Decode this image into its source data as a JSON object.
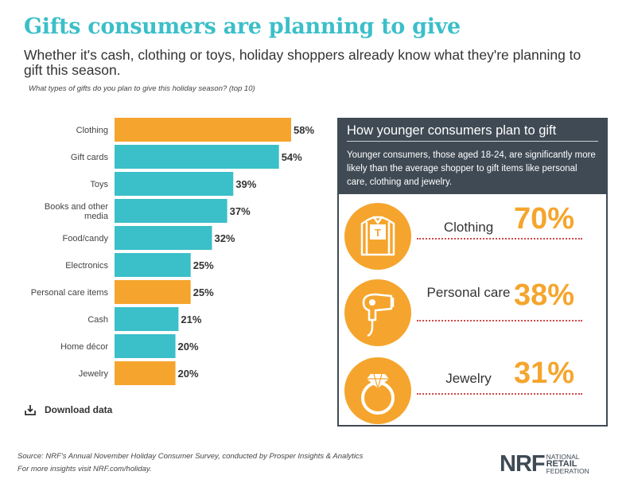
{
  "title": "Gifts consumers are planning to give",
  "subtitle": "Whether it's cash, clothing or toys, holiday shoppers already know what they're planning to gift this season.",
  "question": "What types of gifts do you plan to give this holiday season? (top 10)",
  "chart_data": {
    "type": "bar",
    "orientation": "horizontal",
    "categories": [
      "Clothing",
      "Gift cards",
      "Toys",
      "Books and other media",
      "Food/candy",
      "Electronics",
      "Personal care items",
      "Cash",
      "Home décor",
      "Jewelry"
    ],
    "values": [
      58,
      54,
      39,
      37,
      32,
      25,
      25,
      21,
      20,
      20
    ],
    "value_labels": [
      "58%",
      "54%",
      "39%",
      "37%",
      "32%",
      "25%",
      "25%",
      "21%",
      "20%",
      "20%"
    ],
    "highlighted": [
      true,
      false,
      false,
      false,
      false,
      false,
      true,
      false,
      false,
      true
    ],
    "colors": {
      "highlight": "#f5a52d",
      "default": "#3bbfc9"
    },
    "xlim": [
      0,
      60
    ]
  },
  "download": {
    "label": "Download data",
    "icon": "download-icon"
  },
  "panel": {
    "title": "How younger consumers plan to gift",
    "description": "Younger consumers, those aged 18-24, are significantly more likely than the average shopper to gift items like personal care, clothing and jewelry.",
    "items": [
      {
        "label": "Clothing",
        "value": "70%",
        "icon": "shirt-icon",
        "icon_text": "T"
      },
      {
        "label": "Personal care",
        "value": "38%",
        "icon": "hair-dryer-icon"
      },
      {
        "label": "Jewelry",
        "value": "31%",
        "icon": "ring-icon"
      }
    ]
  },
  "source": "Source: NRF's Annual November Holiday Consumer Survey, conducted by Prosper Insights & Analytics",
  "more": "For more insights visit NRF.com/holiday.",
  "logo": {
    "mark": "NRF",
    "line1": "NATIONAL",
    "line2": "RETAIL",
    "line3": "FEDERATION"
  }
}
